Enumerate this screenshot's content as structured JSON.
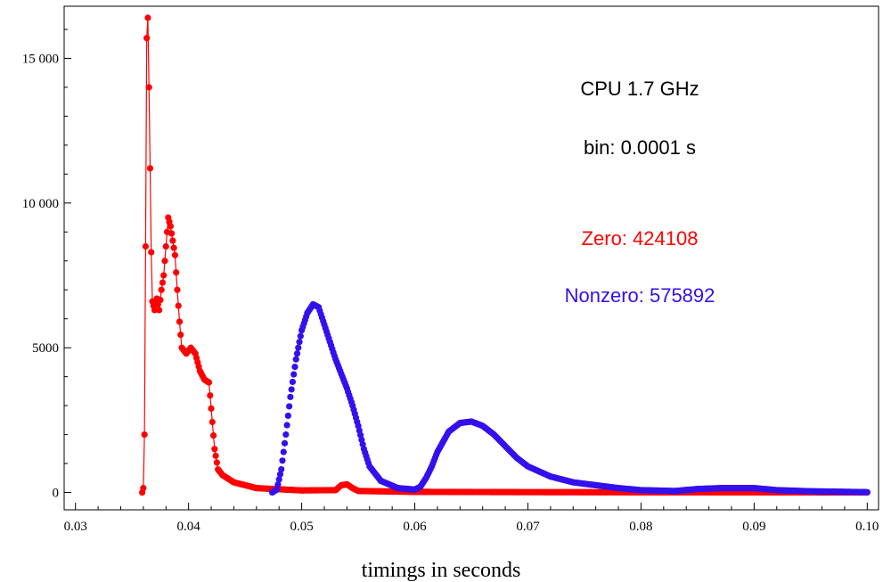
{
  "chart_data": {
    "type": "scatter",
    "title": "",
    "xlabel": "timings in seconds",
    "ylabel": "",
    "xlim": [
      0.029,
      0.101
    ],
    "ylim": [
      -600,
      16800
    ],
    "x_ticks": [
      0.03,
      0.04,
      0.05,
      0.06,
      0.07,
      0.08,
      0.09,
      0.1
    ],
    "x_tick_labels": [
      "0.03",
      "0.04",
      "0.05",
      "0.06",
      "0.07",
      "0.08",
      "0.09",
      "0.10"
    ],
    "y_ticks": [
      0,
      5000,
      10000,
      15000
    ],
    "y_tick_labels": [
      "0",
      "5000",
      "10 000",
      "15 000"
    ],
    "grid": false,
    "annotations": [
      {
        "text": "CPU 1.7 GHz",
        "color": "#000000"
      },
      {
        "text": "bin: 0.0001 s",
        "color": "#000000"
      },
      {
        "text": "Zero: 424108",
        "color": "#ff0000"
      },
      {
        "text": "Nonzero: 575892",
        "color": "#3311ee"
      }
    ],
    "series": [
      {
        "color": "#ff0000",
        "connected": true,
        "keypoints": [
          [
            0.0359,
            0
          ],
          [
            0.036,
            150
          ],
          [
            0.0361,
            2000
          ],
          [
            0.0362,
            8500
          ],
          [
            0.0363,
            15700
          ],
          [
            0.0364,
            16400
          ],
          [
            0.0365,
            14000
          ],
          [
            0.0366,
            11200
          ],
          [
            0.0367,
            8300
          ],
          [
            0.0368,
            6600
          ],
          [
            0.037,
            6300
          ],
          [
            0.0372,
            6700
          ],
          [
            0.0374,
            6300
          ],
          [
            0.0376,
            7000
          ],
          [
            0.0378,
            7500
          ],
          [
            0.038,
            8500
          ],
          [
            0.0382,
            9500
          ],
          [
            0.0384,
            9200
          ],
          [
            0.0386,
            8700
          ],
          [
            0.0388,
            8200
          ],
          [
            0.039,
            7000
          ],
          [
            0.0392,
            5900
          ],
          [
            0.0394,
            5000
          ],
          [
            0.0398,
            4800
          ],
          [
            0.0402,
            5000
          ],
          [
            0.0406,
            4800
          ],
          [
            0.041,
            4200
          ],
          [
            0.0414,
            3900
          ],
          [
            0.0418,
            3800
          ],
          [
            0.042,
            2900
          ],
          [
            0.0423,
            1500
          ],
          [
            0.0426,
            800
          ],
          [
            0.043,
            600
          ],
          [
            0.044,
            350
          ],
          [
            0.046,
            150
          ],
          [
            0.05,
            70
          ],
          [
            0.053,
            80
          ],
          [
            0.0535,
            250
          ],
          [
            0.054,
            280
          ],
          [
            0.0545,
            150
          ],
          [
            0.055,
            50
          ],
          [
            0.06,
            20
          ],
          [
            0.07,
            10
          ],
          [
            0.08,
            5
          ],
          [
            0.09,
            3
          ],
          [
            0.1,
            0
          ]
        ]
      },
      {
        "color": "#3311ee",
        "connected": false,
        "keypoints": [
          [
            0.0474,
            0
          ],
          [
            0.0478,
            100
          ],
          [
            0.0482,
            800
          ],
          [
            0.0486,
            2000
          ],
          [
            0.049,
            3300
          ],
          [
            0.0495,
            4600
          ],
          [
            0.05,
            5600
          ],
          [
            0.0505,
            6200
          ],
          [
            0.051,
            6500
          ],
          [
            0.0515,
            6400
          ],
          [
            0.052,
            5800
          ],
          [
            0.0525,
            5200
          ],
          [
            0.053,
            4600
          ],
          [
            0.0535,
            4100
          ],
          [
            0.054,
            3600
          ],
          [
            0.0545,
            3000
          ],
          [
            0.055,
            2300
          ],
          [
            0.0555,
            1500
          ],
          [
            0.056,
            900
          ],
          [
            0.057,
            400
          ],
          [
            0.0585,
            150
          ],
          [
            0.06,
            100
          ],
          [
            0.0605,
            200
          ],
          [
            0.061,
            500
          ],
          [
            0.0615,
            900
          ],
          [
            0.062,
            1400
          ],
          [
            0.063,
            2100
          ],
          [
            0.064,
            2400
          ],
          [
            0.065,
            2450
          ],
          [
            0.066,
            2300
          ],
          [
            0.067,
            2000
          ],
          [
            0.068,
            1600
          ],
          [
            0.069,
            1200
          ],
          [
            0.07,
            900
          ],
          [
            0.072,
            550
          ],
          [
            0.074,
            350
          ],
          [
            0.076,
            250
          ],
          [
            0.078,
            150
          ],
          [
            0.08,
            80
          ],
          [
            0.083,
            50
          ],
          [
            0.085,
            120
          ],
          [
            0.087,
            150
          ],
          [
            0.09,
            150
          ],
          [
            0.092,
            80
          ],
          [
            0.095,
            40
          ],
          [
            0.1,
            10
          ]
        ]
      }
    ]
  }
}
